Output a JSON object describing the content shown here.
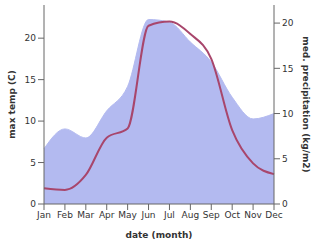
{
  "chart_data": {
    "type": "line",
    "categories": [
      "Jan",
      "Feb",
      "Mar",
      "Apr",
      "May",
      "Jun",
      "Jul",
      "Aug",
      "Sep",
      "Oct",
      "Nov",
      "Dec"
    ],
    "x_label": "date (month)",
    "y_label": "max temp (C)",
    "y2_label": "med. precipitation (kg/m2)",
    "ylim": [
      0,
      24
    ],
    "yticks": [
      0,
      5,
      10,
      15,
      20
    ],
    "y2lim": [
      0,
      22
    ],
    "y2ticks": [
      0,
      5,
      10,
      15,
      20
    ],
    "grid": false,
    "series": [
      {
        "name": "med. precipitation (kg/m2)",
        "type": "area",
        "axis": "y2",
        "color": "#b3baf0",
        "values": [
          6.1,
          8.3,
          7.3,
          10.3,
          13,
          20.4,
          20.1,
          17.9,
          15.7,
          11.8,
          9.4,
          10
        ]
      },
      {
        "name": "max temp (C)",
        "type": "line",
        "color": "#a8466c",
        "values": [
          1.9,
          1.7,
          3.5,
          8,
          9.1,
          21.5,
          22,
          20.5,
          17.5,
          8.9,
          4.9,
          3.6
        ]
      }
    ]
  }
}
